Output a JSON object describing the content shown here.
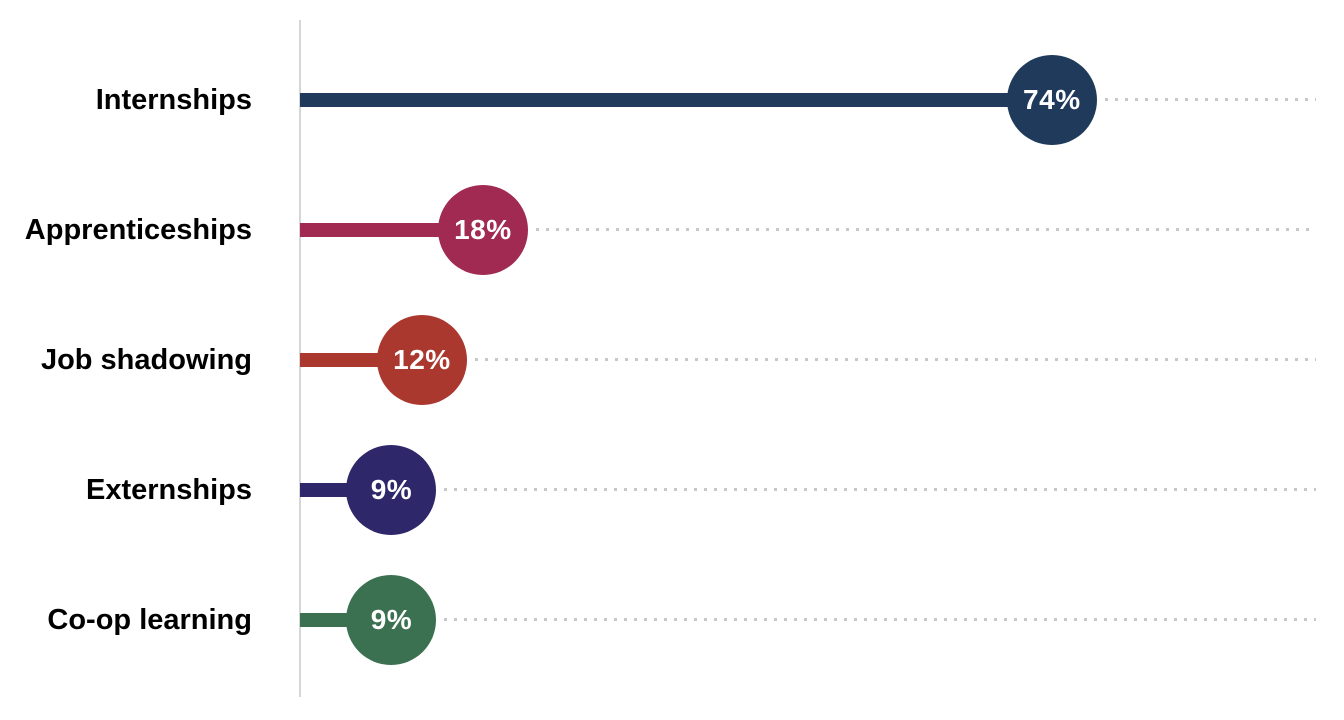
{
  "chart_data": {
    "type": "bar",
    "subtype": "lollipop",
    "orientation": "horizontal",
    "categories": [
      "Internships",
      "Apprenticeships",
      "Job shadowing",
      "Externships",
      "Co-op learning"
    ],
    "values": [
      74,
      18,
      12,
      9,
      9
    ],
    "value_labels": [
      "74%",
      "18%",
      "12%",
      "9%",
      "9%"
    ],
    "series_colors": [
      "#1f3a5a",
      "#a12a53",
      "#ab382f",
      "#2e2769",
      "#3b7150"
    ],
    "xlim": [
      0,
      100
    ],
    "legend": "none",
    "grid": "dotted horizontal leader lines per row",
    "axis_line_color": "#d6d6d6",
    "leader_dot_color": "#c8c8c8",
    "category_label_color": "#000000",
    "value_label_color": "#ffffff"
  }
}
